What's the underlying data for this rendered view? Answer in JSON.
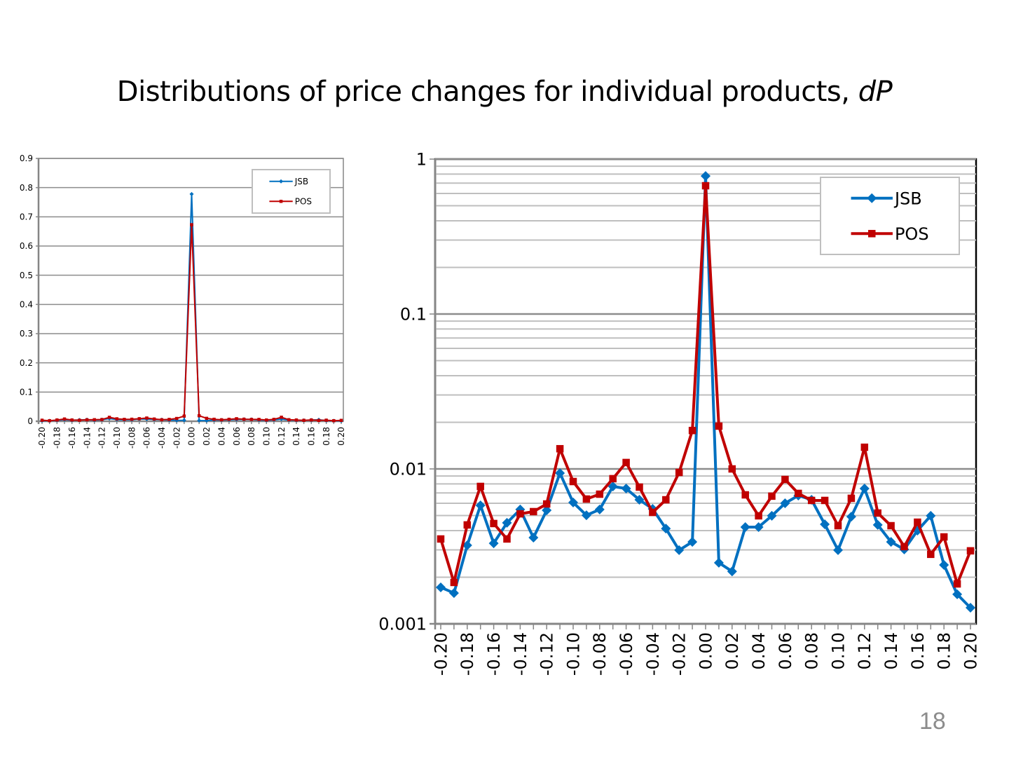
{
  "slide": {
    "title_main": "Distributions of price changes for individual products, ",
    "title_italic": "dP",
    "page_number": "18"
  },
  "colors": {
    "jsb": "#0070c0",
    "pos": "#c00000",
    "grid": "#a6a6a6",
    "axis": "#868686"
  },
  "chart_data": [
    {
      "type": "line",
      "title": "",
      "xlabel": "",
      "ylabel": "",
      "yscale": "linear",
      "ylim": [
        0,
        0.9
      ],
      "yticks": [
        "0",
        "0.1",
        "0.2",
        "0.3",
        "0.4",
        "0.5",
        "0.6",
        "0.7",
        "0.8",
        "0.9"
      ],
      "ytick_values": [
        0,
        0.1,
        0.2,
        0.3,
        0.4,
        0.5,
        0.6,
        0.7,
        0.8,
        0.9
      ],
      "grid": true,
      "legend": "top-right",
      "xtick_labels": [
        "-0.20",
        "-0.18",
        "-0.16",
        "-0.14",
        "-0.12",
        "-0.10",
        "-0.08",
        "-0.06",
        "-0.04",
        "-0.02",
        "0.00",
        "0.02",
        "0.04",
        "0.06",
        "0.08",
        "0.10",
        "0.12",
        "0.14",
        "0.16",
        "0.18",
        "0.20"
      ],
      "x": [
        -0.2,
        -0.19,
        -0.18,
        -0.17,
        -0.16,
        -0.15,
        -0.14,
        -0.13,
        -0.12,
        -0.11,
        -0.1,
        -0.09,
        -0.08,
        -0.07,
        -0.06,
        -0.05,
        -0.04,
        -0.03,
        -0.02,
        -0.01,
        0.0,
        0.01,
        0.02,
        0.03,
        0.04,
        0.05,
        0.06,
        0.07,
        0.08,
        0.09,
        0.1,
        0.11,
        0.12,
        0.13,
        0.14,
        0.15,
        0.16,
        0.17,
        0.18,
        0.19,
        0.2
      ],
      "series": [
        {
          "name": "JSB",
          "marker": "diamond",
          "values": [
            0.0017,
            0.0016,
            0.0032,
            0.0058,
            0.0033,
            0.0045,
            0.0055,
            0.0036,
            0.0054,
            0.0094,
            0.0061,
            0.005,
            0.0055,
            0.0077,
            0.0075,
            0.0063,
            0.0055,
            0.0041,
            0.003,
            0.0034,
            0.778,
            0.0025,
            0.0022,
            0.0042,
            0.0042,
            0.005,
            0.006,
            0.0067,
            0.0063,
            0.0044,
            0.003,
            0.0049,
            0.0075,
            0.0044,
            0.0034,
            0.003,
            0.004,
            0.005,
            0.0024,
            0.0016,
            0.0013
          ]
        },
        {
          "name": "POS",
          "marker": "square",
          "values": [
            0.0035,
            0.0019,
            0.0044,
            0.0077,
            0.0044,
            0.0035,
            0.0051,
            0.0053,
            0.0059,
            0.0135,
            0.0083,
            0.0064,
            0.0069,
            0.0087,
            0.011,
            0.0076,
            0.0052,
            0.0063,
            0.0095,
            0.0177,
            0.673,
            0.0189,
            0.01,
            0.0068,
            0.005,
            0.0067,
            0.0086,
            0.007,
            0.0063,
            0.0063,
            0.0043,
            0.0065,
            0.0138,
            0.0052,
            0.0043,
            0.0032,
            0.0045,
            0.0028,
            0.0036,
            0.0018,
            0.003
          ]
        }
      ]
    },
    {
      "type": "line",
      "title": "",
      "xlabel": "",
      "ylabel": "",
      "yscale": "log",
      "ylim": [
        0.001,
        1
      ],
      "yticks": [
        "0.001",
        "0.01",
        "0.1",
        "1"
      ],
      "ytick_values": [
        0.001,
        0.01,
        0.1,
        1
      ],
      "grid": true,
      "legend": "top-right",
      "xtick_labels": [
        "-0.20",
        "-0.18",
        "-0.16",
        "-0.14",
        "-0.12",
        "-0.10",
        "-0.08",
        "-0.06",
        "-0.04",
        "-0.02",
        "0.00",
        "0.02",
        "0.04",
        "0.06",
        "0.08",
        "0.10",
        "0.12",
        "0.14",
        "0.16",
        "0.18",
        "0.20"
      ],
      "x": [
        -0.2,
        -0.19,
        -0.18,
        -0.17,
        -0.16,
        -0.15,
        -0.14,
        -0.13,
        -0.12,
        -0.11,
        -0.1,
        -0.09,
        -0.08,
        -0.07,
        -0.06,
        -0.05,
        -0.04,
        -0.03,
        -0.02,
        -0.01,
        0.0,
        0.01,
        0.02,
        0.03,
        0.04,
        0.05,
        0.06,
        0.07,
        0.08,
        0.09,
        0.1,
        0.11,
        0.12,
        0.13,
        0.14,
        0.15,
        0.16,
        0.17,
        0.18,
        0.19,
        0.2
      ],
      "series": [
        {
          "name": "JSB",
          "marker": "diamond",
          "values": [
            0.00172,
            0.00158,
            0.00321,
            0.00582,
            0.00331,
            0.00449,
            0.00547,
            0.0036,
            0.00541,
            0.0094,
            0.00607,
            0.00502,
            0.00547,
            0.00771,
            0.00747,
            0.00632,
            0.00552,
            0.00412,
            0.00299,
            0.00338,
            0.778,
            0.00248,
            0.00218,
            0.00421,
            0.00421,
            0.00498,
            0.006,
            0.00673,
            0.00632,
            0.00439,
            0.00299,
            0.00492,
            0.00747,
            0.00435,
            0.00338,
            0.00302,
            0.004,
            0.00498,
            0.0024,
            0.00155,
            0.00127
          ]
        },
        {
          "name": "POS",
          "marker": "square",
          "values": [
            0.00353,
            0.00185,
            0.00435,
            0.00771,
            0.00444,
            0.00353,
            0.00513,
            0.0053,
            0.00594,
            0.0135,
            0.00829,
            0.00639,
            0.00687,
            0.00865,
            0.011,
            0.00763,
            0.00524,
            0.00632,
            0.00949,
            0.0177,
            0.673,
            0.0189,
            0.01,
            0.0068,
            0.00498,
            0.00667,
            0.00855,
            0.00695,
            0.00626,
            0.00626,
            0.0043,
            0.00646,
            0.0138,
            0.00519,
            0.0043,
            0.00315,
            0.00453,
            0.00281,
            0.00364,
            0.00181,
            0.00296
          ]
        }
      ]
    }
  ]
}
